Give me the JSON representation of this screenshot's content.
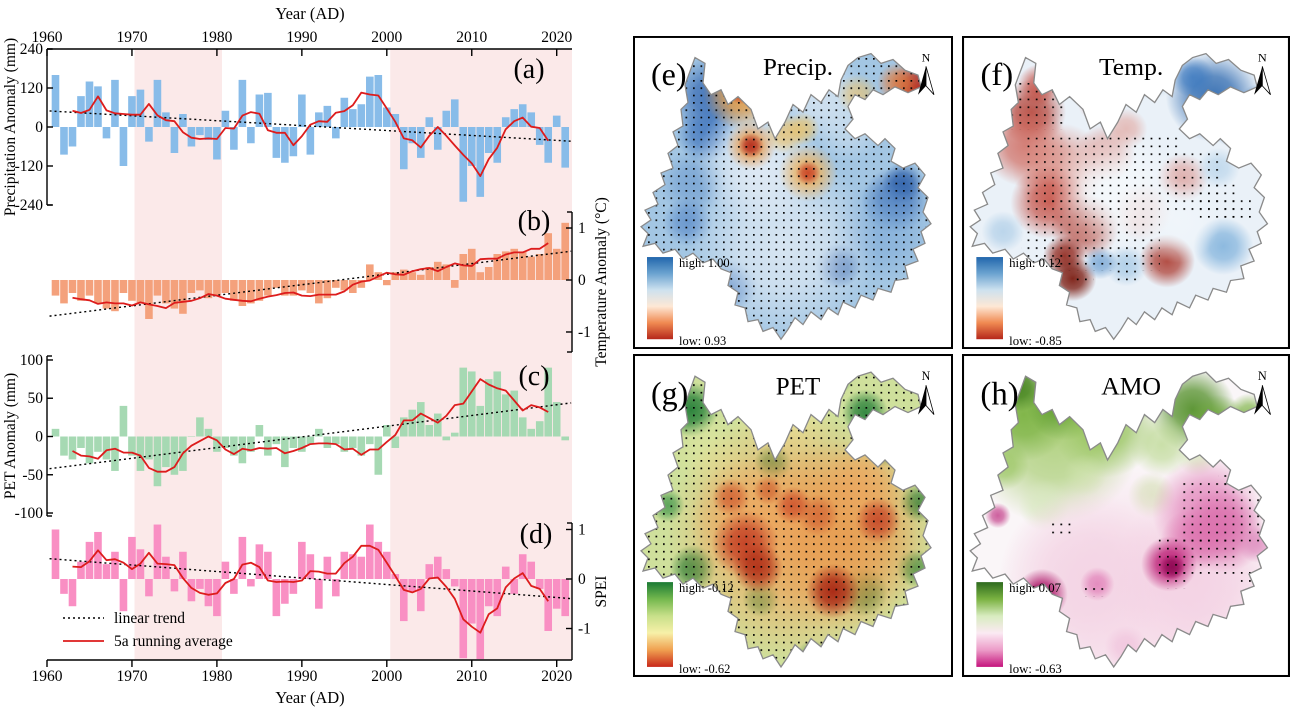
{
  "left_chart": {
    "top_axis_title": "Year (AD)",
    "bottom_axis_title": "Year (AD)",
    "x_tick_labels": [
      "1960",
      "1970",
      "1980",
      "1990",
      "2000",
      "2010",
      "2020"
    ],
    "legend": {
      "trend_label": "linear trend",
      "running_label": "5a running average"
    },
    "band_color": "#fbe9e9",
    "trend_color": "#000000",
    "running_color": "#dd1c1c",
    "panels": [
      {
        "letter": "(a)",
        "axis_label": "Precipitation Anomaly (mm)",
        "axis_side": "left",
        "y_tick_labels": [
          "240",
          "120",
          "0",
          "-120",
          "-240"
        ],
        "bar_color": "#88bce9"
      },
      {
        "letter": "(b)",
        "axis_label": "Temperature Anomaly (°C)",
        "axis_side": "right",
        "y_tick_labels": [
          "1",
          "0",
          "-1"
        ],
        "bar_color": "#f4a17c"
      },
      {
        "letter": "(c)",
        "axis_label": "PET Anomaly (mm)",
        "axis_side": "left",
        "y_tick_labels": [
          "100",
          "50",
          "0",
          "-50",
          "-100"
        ],
        "bar_color": "#a6d9b3"
      },
      {
        "letter": "(d)",
        "axis_label": "SPEI",
        "axis_side": "right",
        "y_tick_labels": [
          "1",
          "0",
          "-1"
        ],
        "bar_color": "#f98fc3"
      }
    ]
  },
  "maps": [
    {
      "letter": "(e)",
      "title": "Precip.",
      "north_label": "N",
      "high_label": "high: 1.00",
      "low_label": "low: 0.93",
      "colorbar": [
        "#2166ac",
        "#6ba3d0",
        "#cde1ef",
        "#fee8d5",
        "#f08a52",
        "#b5271b"
      ],
      "stipple": "full"
    },
    {
      "letter": "(f)",
      "title": "Temp.",
      "north_label": "N",
      "high_label": "high: 0.12",
      "low_label": "low: -0.85",
      "colorbar": [
        "#2166ac",
        "#6ba3d0",
        "#cde1ef",
        "#fee8d5",
        "#f08a52",
        "#b5271b"
      ],
      "stipple": "partial"
    },
    {
      "letter": "(g)",
      "title": "PET",
      "north_label": "N",
      "high_label": "high: -0.12",
      "low_label": "low: -0.62",
      "colorbar": [
        "#1a7a34",
        "#74b84e",
        "#c8e08a",
        "#f7f0a8",
        "#f0a050",
        "#c8281a"
      ],
      "stipple": "full"
    },
    {
      "letter": "(h)",
      "title": "AMO",
      "north_label": "N",
      "high_label": "high: 0.07",
      "low_label": "low: -0.63",
      "colorbar": [
        "#2d6a1e",
        "#7ab241",
        "#d8ecc0",
        "#fbeaf3",
        "#ec9cc8",
        "#c5147d"
      ],
      "stipple": "partial"
    }
  ],
  "chart_data": {
    "left_panels": {
      "type": "bar",
      "x_label": "Year (AD)",
      "x_range": [
        1960,
        2022
      ],
      "x_tick_values": [
        1960,
        1970,
        1980,
        1990,
        2000,
        2010,
        2020
      ],
      "shaded_periods": [
        [
          1970.3,
          1980.6
        ],
        [
          2000.4,
          2021.8
        ]
      ],
      "overlays": [
        "linear trend",
        "5a running average (5-yr centered mean)"
      ],
      "x_years": [
        1961,
        1962,
        1963,
        1964,
        1965,
        1966,
        1967,
        1968,
        1969,
        1970,
        1971,
        1972,
        1973,
        1974,
        1975,
        1976,
        1977,
        1978,
        1979,
        1980,
        1981,
        1982,
        1983,
        1984,
        1985,
        1986,
        1987,
        1988,
        1989,
        1990,
        1991,
        1992,
        1993,
        1994,
        1995,
        1996,
        1997,
        1998,
        1999,
        2000,
        2001,
        2002,
        2003,
        2004,
        2005,
        2006,
        2007,
        2008,
        2009,
        2010,
        2011,
        2012,
        2013,
        2014,
        2015,
        2016,
        2017,
        2018,
        2019,
        2020,
        2021
      ],
      "series": [
        {
          "name": "Precipitation Anomaly (mm)",
          "panel": "(a)",
          "ylim": [
            -240,
            240
          ],
          "y_ticks": [
            240,
            120,
            0,
            -120,
            -240
          ],
          "values": [
            160,
            -85,
            -60,
            95,
            140,
            125,
            -35,
            145,
            -120,
            95,
            115,
            -45,
            145,
            45,
            -80,
            40,
            -60,
            -25,
            -40,
            -100,
            50,
            -70,
            145,
            -50,
            100,
            105,
            -95,
            -110,
            -90,
            100,
            -85,
            45,
            65,
            -35,
            90,
            55,
            70,
            155,
            160,
            60,
            40,
            -130,
            -50,
            -95,
            30,
            -70,
            50,
            85,
            -230,
            -120,
            -215,
            -80,
            -110,
            30,
            55,
            70,
            45,
            -55,
            -110,
            35,
            -125
          ]
        },
        {
          "name": "Temperature Anomaly (°C)",
          "panel": "(b)",
          "ylim": [
            -1.385,
            1.308
          ],
          "y_ticks": [
            1,
            0,
            -1
          ],
          "values": [
            -0.3,
            -0.45,
            -0.25,
            -0.4,
            -0.3,
            -0.45,
            -0.55,
            -0.6,
            -0.25,
            -0.4,
            -0.45,
            -0.75,
            -0.3,
            -0.45,
            -0.55,
            -0.65,
            -0.25,
            -0.2,
            -0.35,
            -0.3,
            -0.25,
            -0.4,
            -0.5,
            -0.45,
            -0.4,
            -0.3,
            -0.15,
            -0.3,
            -0.3,
            -0.2,
            -0.25,
            -0.45,
            -0.35,
            -0.15,
            -0.2,
            -0.25,
            -0.15,
            0.3,
            0.15,
            -0.1,
            0.15,
            0.2,
            0.15,
            0.1,
            0.25,
            0.35,
            0.3,
            -0.15,
            0.5,
            0.6,
            0.15,
            0.25,
            0.5,
            0.55,
            0.6,
            0.55,
            0.45,
            0.5,
            0.9,
            0.6,
            1.1
          ]
        },
        {
          "name": "PET Anomaly (mm)",
          "panel": "(c)",
          "ylim": [
            -103.9,
            105.2
          ],
          "y_ticks": [
            100,
            50,
            0,
            -50,
            -100
          ],
          "values": [
            10,
            -25,
            -30,
            -15,
            -35,
            -20,
            -30,
            -45,
            40,
            -25,
            -45,
            -30,
            -65,
            -40,
            -50,
            -45,
            0,
            25,
            10,
            -20,
            -15,
            -25,
            -35,
            -20,
            15,
            -25,
            -10,
            -40,
            -15,
            -20,
            -10,
            10,
            -15,
            -10,
            -20,
            -15,
            -25,
            -10,
            -50,
            15,
            -15,
            25,
            35,
            45,
            15,
            30,
            -5,
            5,
            90,
            85,
            40,
            75,
            85,
            55,
            60,
            25,
            10,
            20,
            90,
            45,
            -5
          ]
        },
        {
          "name": "SPEI",
          "panel": "(d)",
          "ylim": [
            -1.636,
            1.131
          ],
          "y_ticks": [
            1,
            0,
            -1
          ],
          "values": [
            1.0,
            -0.3,
            -0.55,
            0.35,
            0.75,
            0.95,
            0.3,
            0.55,
            -0.65,
            0.85,
            0.6,
            -0.35,
            1.1,
            0.45,
            -0.25,
            0.55,
            -0.45,
            -0.2,
            -0.55,
            -0.75,
            0.35,
            -0.3,
            0.85,
            -0.15,
            0.7,
            0.55,
            -0.75,
            -0.5,
            -0.3,
            0.75,
            0.5,
            -0.6,
            0.45,
            -0.35,
            0.55,
            0.5,
            0.45,
            1.1,
            0.75,
            0.55,
            0.1,
            -0.85,
            -0.25,
            -0.65,
            0.3,
            0.45,
            0.2,
            -0.15,
            -1.6,
            -0.9,
            -1.62,
            -0.55,
            -0.75,
            0.25,
            -0.3,
            0.5,
            0.35,
            -0.2,
            -1.05,
            -0.6,
            -0.75
          ]
        }
      ]
    },
    "maps": [
      {
        "type": "heatmap",
        "panel": "(e)",
        "title": "Precip.",
        "high": 1.0,
        "low": 0.93,
        "stippling": "entire region significant"
      },
      {
        "type": "heatmap",
        "panel": "(f)",
        "title": "Temp.",
        "high": 0.12,
        "low": -0.85,
        "stippling": "partial"
      },
      {
        "type": "heatmap",
        "panel": "(g)",
        "title": "PET",
        "high": -0.12,
        "low": -0.62,
        "stippling": "entire region significant"
      },
      {
        "type": "heatmap",
        "panel": "(h)",
        "title": "AMO",
        "high": 0.07,
        "low": -0.63,
        "stippling": "partial"
      }
    ]
  }
}
